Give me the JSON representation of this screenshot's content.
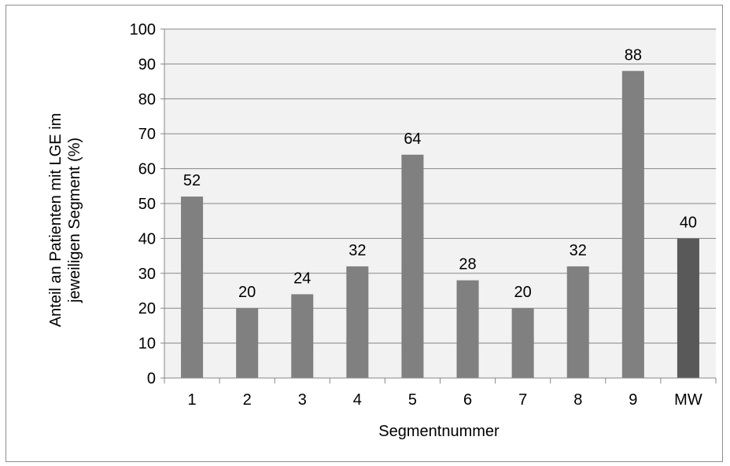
{
  "chart_data": {
    "type": "bar",
    "categories": [
      "1",
      "2",
      "3",
      "4",
      "5",
      "6",
      "7",
      "8",
      "9",
      "MW"
    ],
    "values": [
      52,
      20,
      24,
      32,
      64,
      28,
      20,
      32,
      88,
      40
    ],
    "data_labels": [
      "52",
      "20",
      "24",
      "32",
      "64",
      "28",
      "20",
      "32",
      "88",
      "40"
    ],
    "xlabel": "Segmentnummer",
    "ylabel_lines": [
      "Anteil an Patienten mit LGE im",
      "jeweiligen Segment (%)"
    ],
    "ylim": [
      0,
      100
    ],
    "yticks": [
      0,
      10,
      20,
      30,
      40,
      50,
      60,
      70,
      80,
      90,
      100
    ],
    "grid": true,
    "colors": {
      "bar": "#808080",
      "highlight_bar": "#595959",
      "plot_background": "#f2f2f2",
      "gridline": "#878787",
      "axis": "#878787",
      "frame": "#8c8c8c"
    },
    "highlight_category": "MW"
  }
}
